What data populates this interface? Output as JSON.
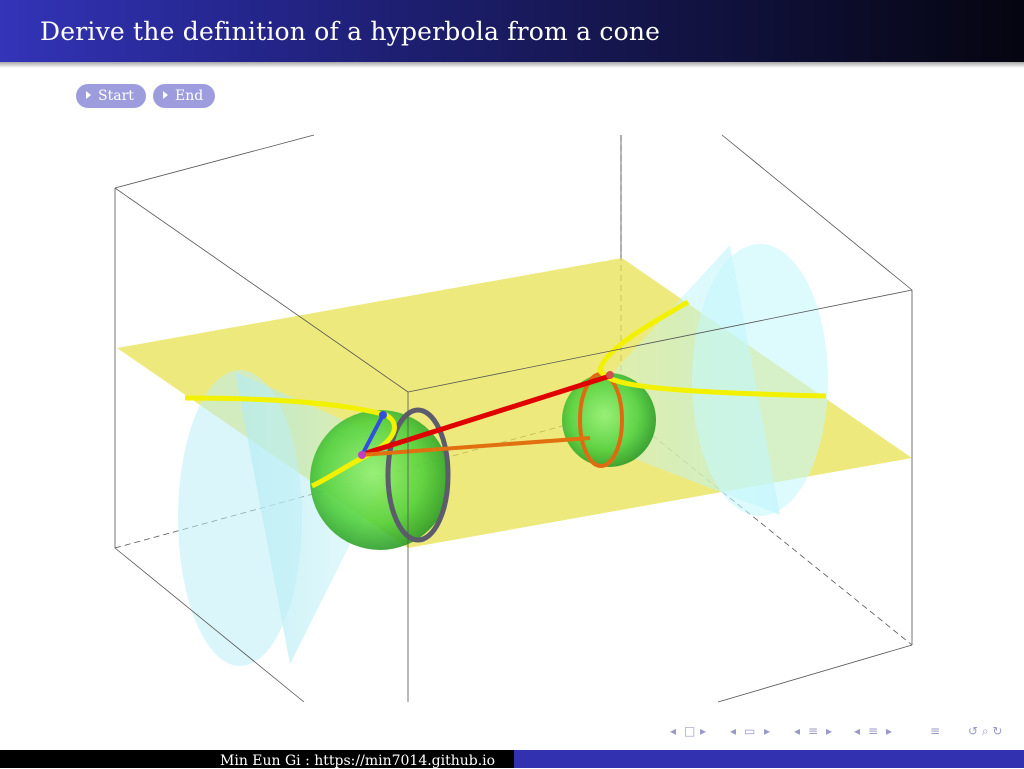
{
  "slide": {
    "title": "Derive the definition of a hyperbola from a cone",
    "footer_text": "Min Eun Gi : https://min7014.github.io"
  },
  "controls": {
    "start_label": "Start",
    "end_label": "End"
  },
  "navigation": {
    "frame_back": "◂",
    "frame_icon": "□",
    "frame_fwd": "▸",
    "subsection_back": "◂",
    "subsection_icon": "▭",
    "subsection_fwd": "▸",
    "section_back": "◂",
    "section_icon": "≡",
    "section_fwd": "▸",
    "part_back": "◂",
    "part_icon": "≡",
    "part_fwd": "▸",
    "outline_icon": "≡",
    "search_icons": "↺ ⌕ ↻"
  },
  "colors": {
    "header_start": "#3334b8",
    "header_end": "#050510",
    "button": "#9d9dde",
    "plane": "#e6e04a",
    "cone": "#b4eef4",
    "sphere": "#3dcc2e",
    "hyperbola": "#f2f200",
    "focal_red": "#e00000",
    "focal_orange": "#e07010",
    "generator_blue": "#3050e0",
    "circle_gray": "#606070"
  }
}
